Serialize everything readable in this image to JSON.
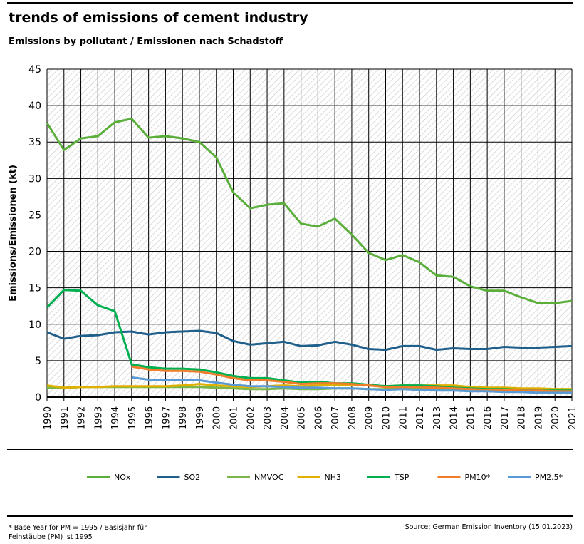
{
  "title": "trends of emissions of cement industry",
  "subtitle": "Emissions by pollutant / Emissionen nach Schadstoff",
  "footnote": "* Base Year for PM = 1995 / Basisjahr für Feinstäube (PM) ist 1995",
  "source": "Source: German Emission Inventory (15.01.2023)",
  "chart_data": {
    "type": "line",
    "ylabel": "Emissions/Emissionen (kt)",
    "ylim": [
      0,
      45
    ],
    "yticks": [
      0,
      5,
      10,
      15,
      20,
      25,
      30,
      35,
      40,
      45
    ],
    "grid": true,
    "legend": "bottom",
    "x": [
      1990,
      1991,
      1992,
      1993,
      1994,
      1995,
      1996,
      1997,
      1998,
      1999,
      2000,
      2001,
      2002,
      2003,
      2004,
      2005,
      2006,
      2007,
      2008,
      2009,
      2010,
      2011,
      2012,
      2013,
      2014,
      2015,
      2016,
      2017,
      2018,
      2019,
      2020,
      2021
    ],
    "series": [
      {
        "name": "NOx",
        "color": "#5aae3a",
        "values": [
          37.6,
          33.9,
          35.5,
          35.8,
          37.7,
          38.2,
          35.6,
          35.8,
          35.5,
          35.0,
          32.9,
          28.1,
          25.9,
          26.4,
          26.6,
          23.8,
          23.4,
          24.5,
          22.3,
          19.8,
          18.8,
          19.5,
          18.5,
          16.7,
          16.5,
          15.2,
          14.6,
          14.6,
          13.7,
          12.9,
          12.9,
          13.2
        ]
      },
      {
        "name": "SO2",
        "color": "#1f5f8b",
        "values": [
          8.9,
          8.0,
          8.4,
          8.5,
          8.9,
          9.0,
          8.6,
          8.9,
          9.0,
          9.1,
          8.8,
          7.7,
          7.2,
          7.4,
          7.6,
          7.0,
          7.1,
          7.6,
          7.2,
          6.6,
          6.5,
          7.0,
          7.0,
          6.5,
          6.7,
          6.6,
          6.6,
          6.9,
          6.8,
          6.8,
          6.9,
          7.0
        ]
      },
      {
        "name": "NMVOC",
        "color": "#7ab648",
        "values": [
          1.3,
          1.2,
          1.4,
          1.4,
          1.4,
          1.4,
          1.4,
          1.4,
          1.4,
          1.4,
          1.3,
          1.2,
          1.1,
          1.1,
          1.2,
          1.1,
          1.1,
          1.2,
          1.2,
          1.1,
          1.1,
          1.2,
          1.2,
          1.1,
          1.1,
          1.1,
          1.1,
          1.1,
          1.1,
          1.1,
          1.1,
          1.1
        ]
      },
      {
        "name": "NH3",
        "color": "#e0b000",
        "values": [
          1.6,
          1.3,
          1.4,
          1.4,
          1.5,
          1.5,
          1.5,
          1.5,
          1.6,
          1.8,
          1.6,
          1.5,
          1.4,
          1.5,
          1.6,
          1.5,
          1.6,
          1.7,
          1.7,
          1.6,
          1.5,
          1.6,
          1.6,
          1.6,
          1.6,
          1.4,
          1.3,
          1.3,
          1.2,
          1.2,
          1.1,
          1.1
        ]
      },
      {
        "name": "TSP",
        "color": "#00b050",
        "values": [
          12.3,
          14.7,
          14.6,
          12.6,
          11.8,
          4.5,
          4.1,
          3.9,
          3.9,
          3.8,
          3.4,
          2.9,
          2.6,
          2.6,
          2.3,
          2.0,
          2.1,
          1.9,
          1.9,
          1.7,
          1.5,
          1.6,
          1.6,
          1.5,
          1.3,
          1.2,
          1.1,
          1.1,
          1.0,
          0.9,
          0.9,
          0.9
        ]
      },
      {
        "name": "PM10*",
        "color": "#f07d2a",
        "values": [
          null,
          null,
          null,
          null,
          null,
          4.2,
          3.8,
          3.6,
          3.6,
          3.5,
          3.1,
          2.6,
          2.3,
          2.3,
          2.1,
          1.8,
          1.9,
          1.9,
          1.8,
          1.6,
          1.4,
          1.4,
          1.4,
          1.3,
          1.2,
          1.1,
          1.0,
          1.0,
          0.9,
          0.9,
          0.8,
          0.8
        ]
      },
      {
        "name": "PM2.5*",
        "color": "#5b9bd5",
        "values": [
          null,
          null,
          null,
          null,
          null,
          2.7,
          2.4,
          2.3,
          2.3,
          2.3,
          2.0,
          1.7,
          1.5,
          1.5,
          1.4,
          1.3,
          1.3,
          1.2,
          1.2,
          1.1,
          1.0,
          1.1,
          1.0,
          0.9,
          0.9,
          0.8,
          0.8,
          0.7,
          0.7,
          0.6,
          0.6,
          0.6
        ]
      }
    ]
  }
}
